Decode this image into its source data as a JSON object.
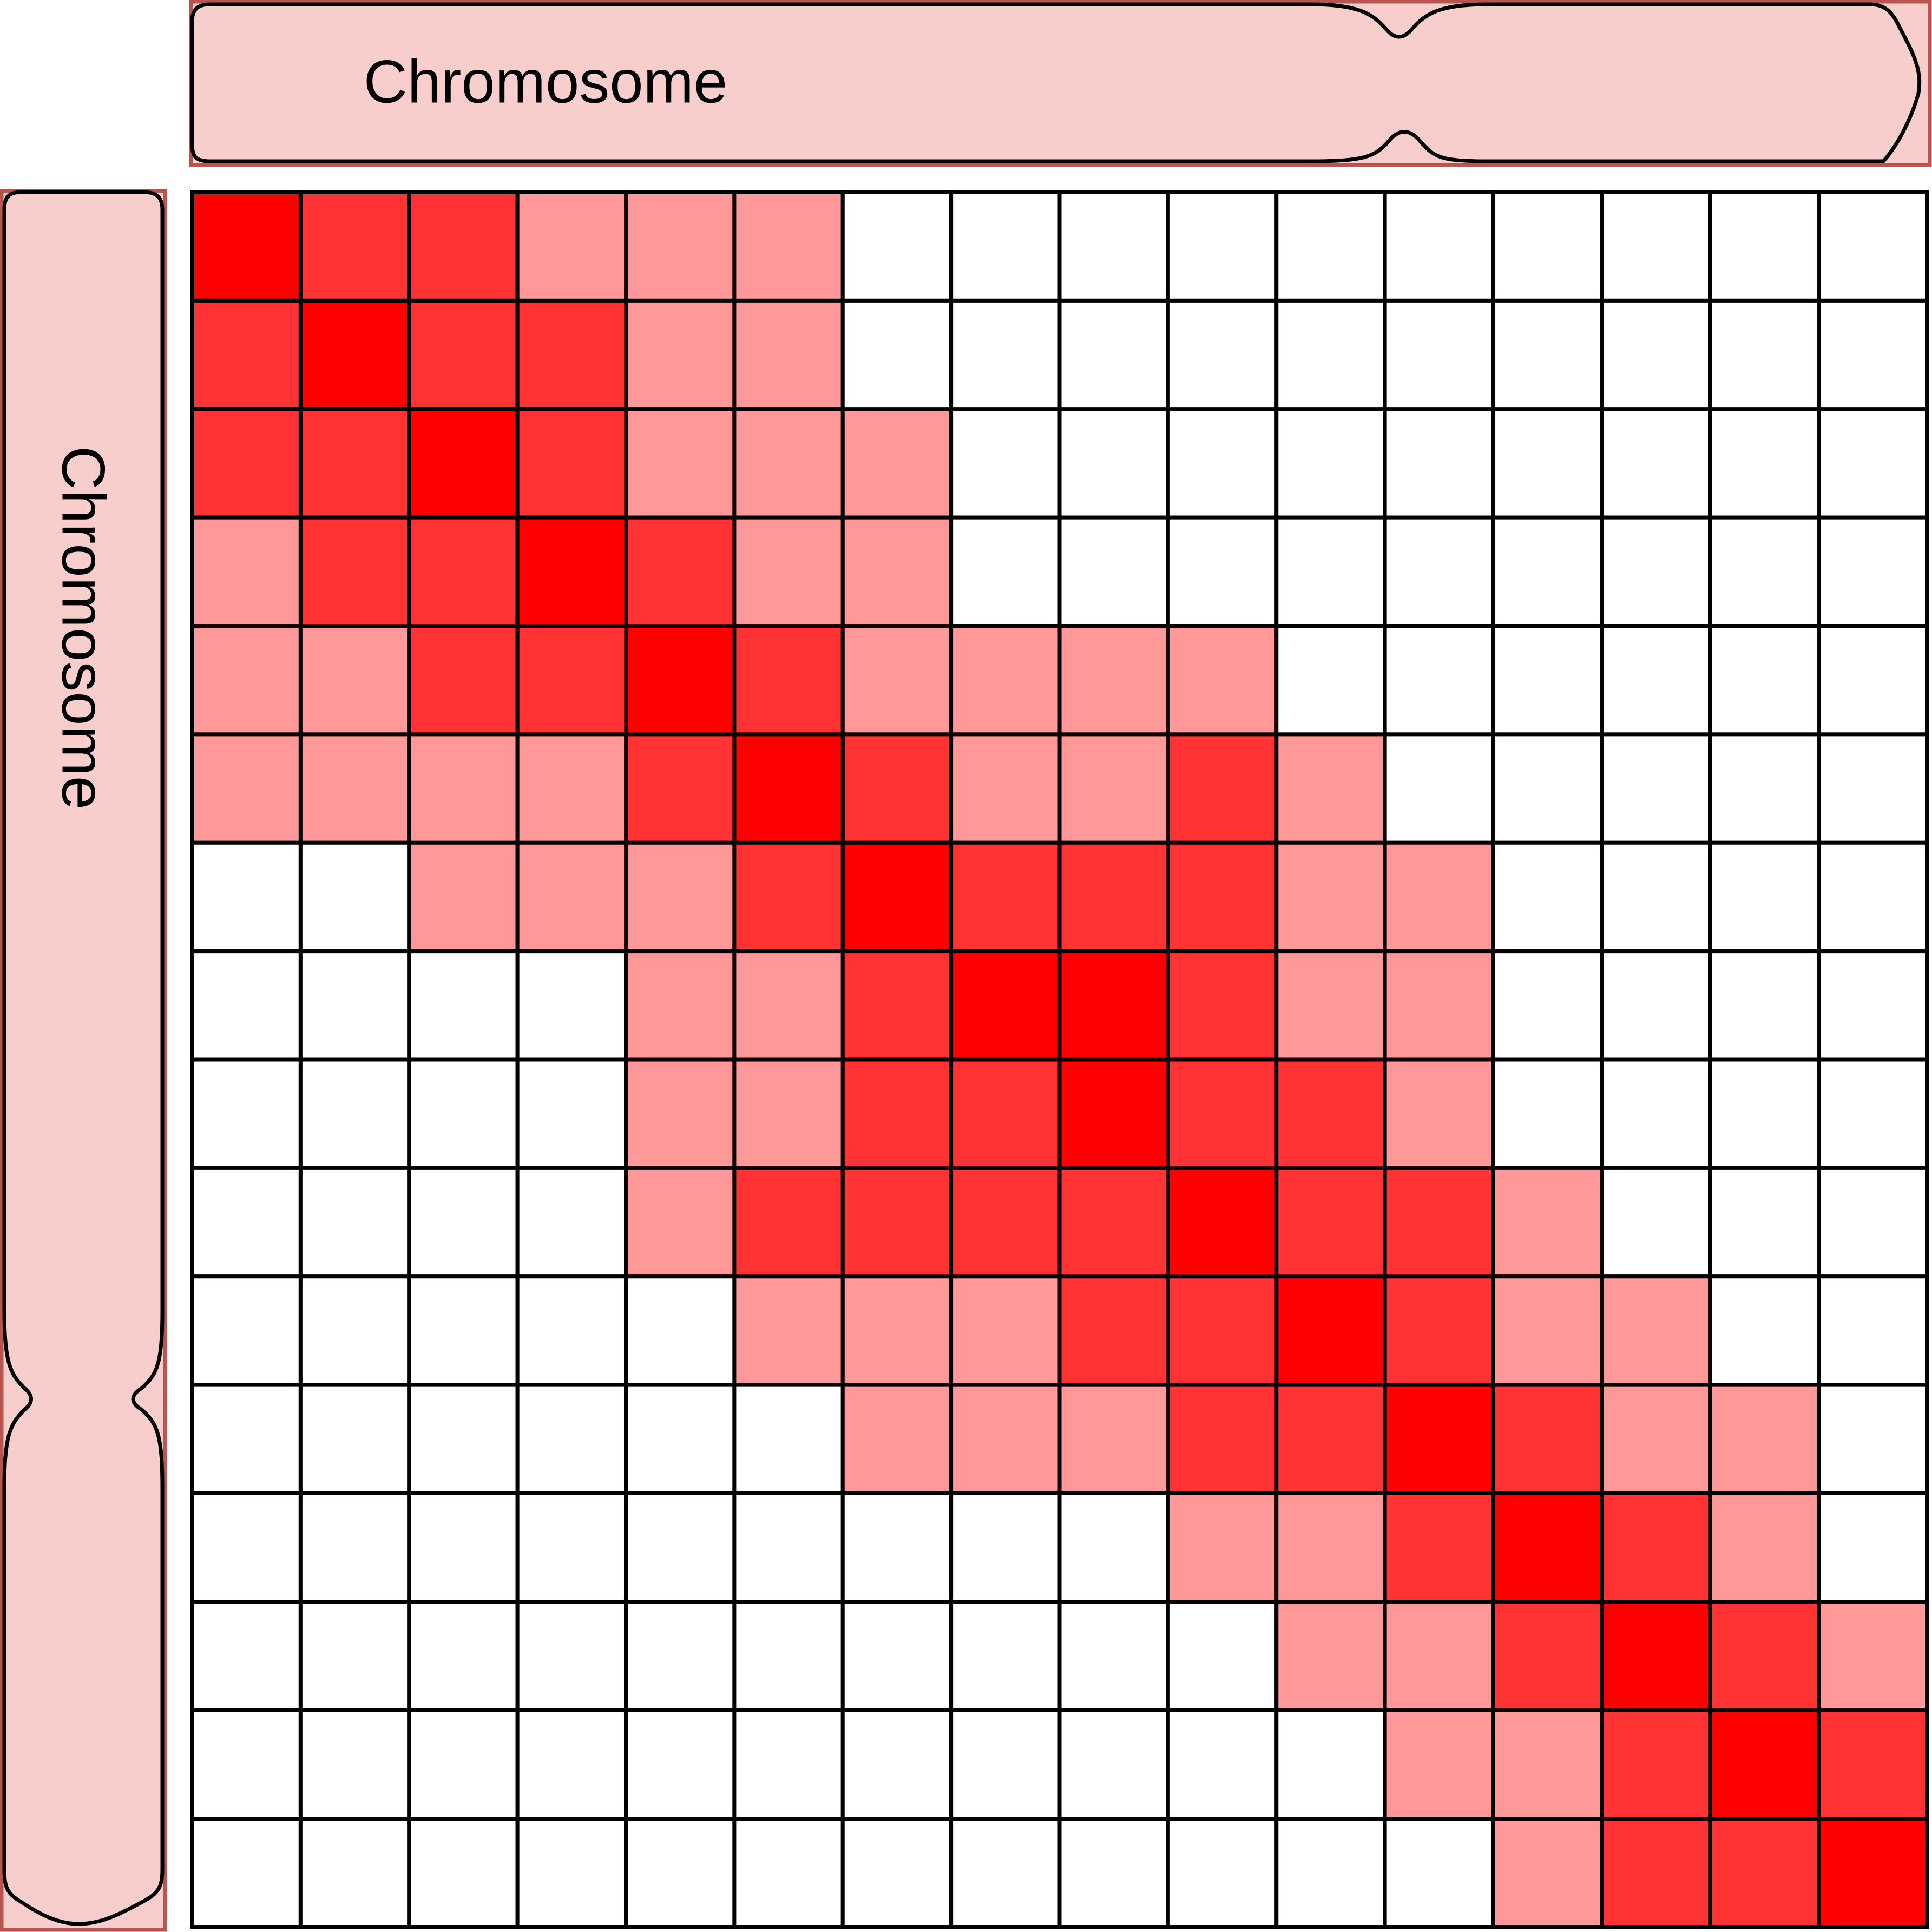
{
  "diagram": {
    "top_chromosome_label": "Chromosome",
    "left_chromosome_label": "Chromosome",
    "chromosome_fill": "#f8cecc",
    "chromosome_frame_color": "#b85450",
    "outline_color": "#000000"
  },
  "chart_data": {
    "type": "heatmap",
    "rows": 16,
    "cols": 16,
    "colors": {
      "0": "#ffffff",
      "1": "#ff9999",
      "2": "#ff3333",
      "3": "#ff0000"
    },
    "matrix": [
      [
        3,
        2,
        2,
        1,
        1,
        1,
        0,
        0,
        0,
        0,
        0,
        0,
        0,
        0,
        0,
        0
      ],
      [
        2,
        3,
        2,
        2,
        1,
        1,
        0,
        0,
        0,
        0,
        0,
        0,
        0,
        0,
        0,
        0
      ],
      [
        2,
        2,
        3,
        2,
        1,
        1,
        1,
        0,
        0,
        0,
        0,
        0,
        0,
        0,
        0,
        0
      ],
      [
        1,
        2,
        2,
        3,
        2,
        1,
        1,
        0,
        0,
        0,
        0,
        0,
        0,
        0,
        0,
        0
      ],
      [
        1,
        1,
        2,
        2,
        3,
        2,
        1,
        1,
        1,
        1,
        0,
        0,
        0,
        0,
        0,
        0
      ],
      [
        1,
        1,
        1,
        1,
        2,
        3,
        2,
        1,
        1,
        2,
        1,
        0,
        0,
        0,
        0,
        0
      ],
      [
        0,
        0,
        1,
        1,
        1,
        2,
        3,
        2,
        2,
        2,
        1,
        1,
        0,
        0,
        0,
        0
      ],
      [
        0,
        0,
        0,
        0,
        1,
        1,
        2,
        3,
        3,
        2,
        1,
        1,
        0,
        0,
        0,
        0
      ],
      [
        0,
        0,
        0,
        0,
        1,
        1,
        2,
        2,
        3,
        2,
        2,
        1,
        0,
        0,
        0,
        0
      ],
      [
        0,
        0,
        0,
        0,
        1,
        2,
        2,
        2,
        2,
        3,
        2,
        2,
        1,
        0,
        0,
        0
      ],
      [
        0,
        0,
        0,
        0,
        0,
        1,
        1,
        1,
        2,
        2,
        3,
        2,
        1,
        1,
        0,
        0
      ],
      [
        0,
        0,
        0,
        0,
        0,
        0,
        1,
        1,
        1,
        2,
        2,
        3,
        2,
        1,
        1,
        0
      ],
      [
        0,
        0,
        0,
        0,
        0,
        0,
        0,
        0,
        0,
        1,
        1,
        2,
        3,
        2,
        1,
        0
      ],
      [
        0,
        0,
        0,
        0,
        0,
        0,
        0,
        0,
        0,
        0,
        1,
        1,
        2,
        3,
        2,
        1
      ],
      [
        0,
        0,
        0,
        0,
        0,
        0,
        0,
        0,
        0,
        0,
        0,
        1,
        1,
        2,
        3,
        2
      ],
      [
        0,
        0,
        0,
        0,
        0,
        0,
        0,
        0,
        0,
        0,
        0,
        0,
        1,
        2,
        2,
        3
      ]
    ]
  }
}
